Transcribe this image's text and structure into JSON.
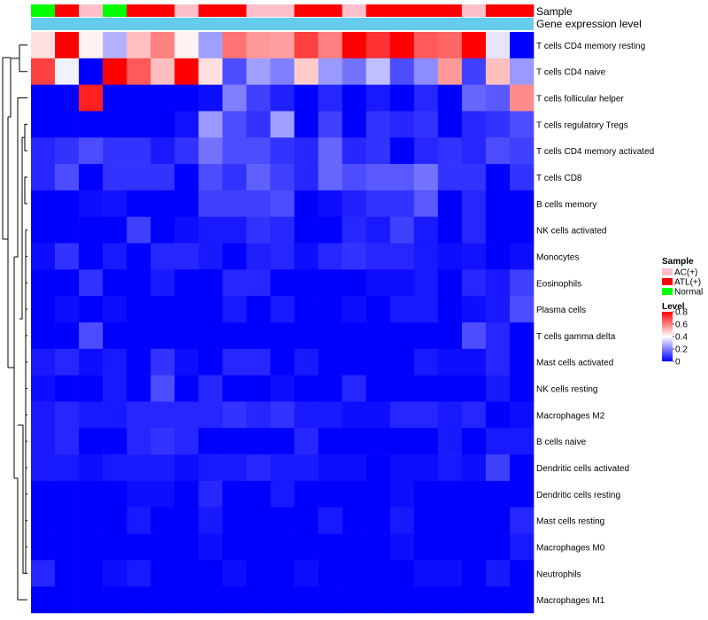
{
  "chart_data": {
    "type": "heatmap",
    "annotation_tracks": [
      {
        "name": "Sample"
      },
      {
        "name": "Gene expression level"
      }
    ],
    "sample_groups": [
      "Normal",
      "ATL(+)",
      "AC(+)",
      "Normal",
      "ATL(+)",
      "ATL(+)",
      "AC(+)",
      "ATL(+)",
      "ATL(+)",
      "AC(+)",
      "AC(+)",
      "ATL(+)",
      "ATL(+)",
      "AC(+)",
      "ATL(+)",
      "ATL(+)",
      "ATL(+)",
      "ATL(+)",
      "AC(+)",
      "ATL(+)",
      "ATL(+)"
    ],
    "row_labels": [
      "T cells CD4 memory resting",
      "T cells CD4 naive",
      "T cells follicular helper",
      "T cells regulatory  Tregs",
      "T cells CD4 memory activated",
      "T cells CD8",
      "B cells memory",
      "NK cells activated",
      "Monocytes",
      "Eosinophils",
      "Plasma cells",
      "T cells gamma delta",
      "Mast cells activated",
      "NK cells resting",
      "Macrophages M2",
      "B cells naive",
      "Dendritic cells activated",
      "Dendritic cells resting",
      "Mast cells resting",
      "Macrophages M0",
      "Neutrophils",
      "Macrophages M1"
    ],
    "values": [
      [
        0.45,
        0.8,
        0.42,
        0.28,
        0.5,
        0.6,
        0.42,
        0.25,
        0.62,
        0.56,
        0.55,
        0.7,
        0.6,
        0.8,
        0.72,
        0.8,
        0.66,
        0.64,
        0.8,
        0.36,
        0.0
      ],
      [
        0.7,
        0.38,
        0.0,
        0.8,
        0.66,
        0.5,
        0.8,
        0.45,
        0.12,
        0.25,
        0.2,
        0.48,
        0.24,
        0.18,
        0.3,
        0.12,
        0.22,
        0.56,
        0.1,
        0.5,
        0.24
      ],
      [
        0.0,
        0.0,
        0.75,
        0.0,
        0.0,
        0.0,
        0.0,
        0.02,
        0.2,
        0.1,
        0.05,
        0.0,
        0.06,
        0.0,
        0.04,
        0.0,
        0.06,
        0.0,
        0.16,
        0.14,
        0.58
      ],
      [
        0.0,
        0.0,
        0.0,
        0.0,
        0.0,
        0.0,
        0.03,
        0.24,
        0.12,
        0.08,
        0.25,
        0.0,
        0.1,
        0.0,
        0.08,
        0.06,
        0.08,
        0.0,
        0.06,
        0.08,
        0.12
      ],
      [
        0.06,
        0.08,
        0.12,
        0.08,
        0.08,
        0.04,
        0.08,
        0.18,
        0.12,
        0.12,
        0.08,
        0.06,
        0.16,
        0.06,
        0.08,
        0.0,
        0.06,
        0.08,
        0.06,
        0.12,
        0.1
      ],
      [
        0.06,
        0.12,
        0.0,
        0.08,
        0.08,
        0.08,
        0.0,
        0.12,
        0.08,
        0.15,
        0.1,
        0.06,
        0.16,
        0.12,
        0.14,
        0.14,
        0.18,
        0.08,
        0.08,
        0.0,
        0.08
      ],
      [
        0.0,
        0.0,
        0.02,
        0.03,
        0.0,
        0.0,
        0.0,
        0.1,
        0.1,
        0.1,
        0.12,
        0.0,
        0.02,
        0.05,
        0.08,
        0.08,
        0.14,
        0.0,
        0.06,
        0.0,
        0.0
      ],
      [
        0.0,
        0.0,
        0.0,
        0.0,
        0.1,
        0.0,
        0.02,
        0.04,
        0.04,
        0.08,
        0.06,
        0.0,
        0.0,
        0.06,
        0.04,
        0.1,
        0.04,
        0.0,
        0.06,
        0.0,
        0.0
      ],
      [
        0.02,
        0.08,
        0.0,
        0.04,
        0.0,
        0.06,
        0.06,
        0.04,
        0.0,
        0.05,
        0.06,
        0.02,
        0.06,
        0.08,
        0.06,
        0.06,
        0.04,
        0.02,
        0.03,
        0.0,
        0.02
      ],
      [
        0.0,
        0.0,
        0.08,
        0.0,
        0.0,
        0.04,
        0.0,
        0.0,
        0.06,
        0.06,
        0.0,
        0.0,
        0.0,
        0.0,
        0.02,
        0.02,
        0.04,
        0.0,
        0.06,
        0.04,
        0.1
      ],
      [
        0.0,
        0.02,
        0.0,
        0.02,
        0.0,
        0.0,
        0.0,
        0.0,
        0.04,
        0.0,
        0.04,
        0.0,
        0.0,
        0.02,
        0.0,
        0.04,
        0.04,
        0.0,
        0.02,
        0.04,
        0.12
      ],
      [
        0.0,
        0.0,
        0.12,
        0.0,
        0.0,
        0.0,
        0.0,
        0.0,
        0.0,
        0.0,
        0.0,
        0.0,
        0.0,
        0.0,
        0.0,
        0.0,
        0.0,
        0.0,
        0.12,
        0.06,
        0.0
      ],
      [
        0.04,
        0.06,
        0.02,
        0.04,
        0.0,
        0.08,
        0.02,
        0.0,
        0.06,
        0.06,
        0.0,
        0.04,
        0.0,
        0.0,
        0.0,
        0.0,
        0.04,
        0.02,
        0.02,
        0.06,
        0.0
      ],
      [
        0.02,
        0.0,
        0.0,
        0.04,
        0.0,
        0.12,
        0.0,
        0.06,
        0.0,
        0.0,
        0.02,
        0.0,
        0.0,
        0.06,
        0.0,
        0.0,
        0.0,
        0.0,
        0.0,
        0.04,
        0.0
      ],
      [
        0.04,
        0.06,
        0.04,
        0.04,
        0.06,
        0.06,
        0.06,
        0.06,
        0.08,
        0.06,
        0.08,
        0.04,
        0.04,
        0.02,
        0.02,
        0.06,
        0.06,
        0.04,
        0.06,
        0.0,
        0.02
      ],
      [
        0.04,
        0.06,
        0.0,
        0.0,
        0.06,
        0.08,
        0.06,
        0.0,
        0.0,
        0.0,
        0.0,
        0.06,
        0.0,
        0.0,
        0.0,
        0.0,
        0.0,
        0.04,
        0.0,
        0.04,
        0.04
      ],
      [
        0.04,
        0.04,
        0.02,
        0.04,
        0.04,
        0.04,
        0.02,
        0.04,
        0.04,
        0.06,
        0.04,
        0.04,
        0.02,
        0.02,
        0.0,
        0.02,
        0.02,
        0.04,
        0.02,
        0.1,
        0.0
      ],
      [
        0.0,
        0.0,
        0.0,
        0.0,
        0.02,
        0.02,
        0.0,
        0.06,
        0.0,
        0.0,
        0.04,
        0.0,
        0.0,
        0.0,
        0.0,
        0.02,
        0.0,
        0.0,
        0.0,
        0.0,
        0.0
      ],
      [
        0.0,
        0.0,
        0.0,
        0.0,
        0.04,
        0.0,
        0.0,
        0.04,
        0.0,
        0.0,
        0.0,
        0.0,
        0.04,
        0.0,
        0.0,
        0.04,
        0.0,
        0.0,
        0.0,
        0.0,
        0.06
      ],
      [
        0.0,
        0.0,
        0.0,
        0.0,
        0.0,
        0.0,
        0.0,
        0.02,
        0.0,
        0.0,
        0.0,
        0.0,
        0.0,
        0.0,
        0.0,
        0.02,
        0.0,
        0.0,
        0.0,
        0.0,
        0.04
      ],
      [
        0.06,
        0.0,
        0.0,
        0.02,
        0.04,
        0.0,
        0.0,
        0.0,
        0.02,
        0.0,
        0.0,
        0.02,
        0.0,
        0.0,
        0.0,
        0.0,
        0.02,
        0.02,
        0.0,
        0.04,
        0.0
      ],
      [
        0.0,
        0.0,
        0.0,
        0.0,
        0.0,
        0.0,
        0.0,
        0.0,
        0.0,
        0.0,
        0.0,
        0.0,
        0.0,
        0.0,
        0.0,
        0.0,
        0.0,
        0.0,
        0.0,
        0.0,
        0.0
      ]
    ],
    "legend_sample": {
      "title": "Sample",
      "entries": [
        {
          "label": "AC(+)",
          "color": "#ffc0cb"
        },
        {
          "label": "ATL(+)",
          "color": "#ff0000"
        },
        {
          "label": "Normal",
          "color": "#00ff00"
        }
      ]
    },
    "legend_level": {
      "title": "Level",
      "ticks": [
        "0.8",
        "0.6",
        "0.4",
        "0.2",
        "0"
      ],
      "tick_values": [
        0.8,
        0.6,
        0.4,
        0.2,
        0.0
      ],
      "range": [
        0,
        0.8
      ]
    },
    "colorscale": {
      "low": "#0000ff",
      "mid": "#ffffff",
      "high": "#ff0000",
      "mid_value": 0.4
    },
    "expression_track_color": "#66ccee",
    "row_dendrogram": true
  }
}
